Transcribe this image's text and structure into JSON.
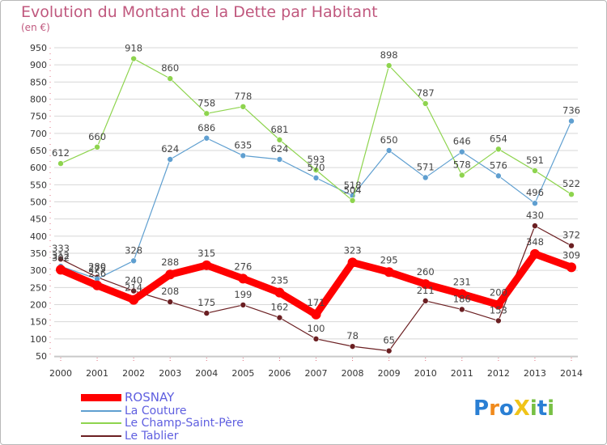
{
  "header": {
    "title": "Evolution du Montant de la Dette par Habitant",
    "unit": "(en €)"
  },
  "colors": {
    "title": "#c0587e",
    "rosnay": "#ff0000",
    "la_couture": "#5f9fd0",
    "champ": "#8ed44e",
    "tablier": "#6b1f22",
    "grid": "#d7d7d7",
    "axis_text": "#333333"
  },
  "logo": {
    "text": "ProXiti",
    "letters": [
      "P",
      "r",
      "o",
      "X",
      "i",
      "t",
      "i"
    ]
  },
  "chart_data": {
    "type": "line",
    "title": "Evolution du Montant de la Dette par Habitant",
    "ylabel": "(en €)",
    "xlabel": "",
    "x": [
      "2000",
      "2001",
      "2002",
      "2003",
      "2004",
      "2005",
      "2006",
      "2007",
      "2008",
      "2009",
      "2010",
      "2011",
      "2012",
      "2013",
      "2014"
    ],
    "ylim": [
      50,
      950
    ],
    "yticks": [
      50,
      100,
      150,
      200,
      250,
      300,
      350,
      400,
      450,
      500,
      550,
      600,
      650,
      700,
      750,
      800,
      850,
      900,
      950
    ],
    "grid": true,
    "legend_position": "bottom-left",
    "series": [
      {
        "name": "ROSNAY",
        "key": "rosnay",
        "values": [
          302,
          256,
          214,
          288,
          315,
          276,
          235,
          171,
          323,
          295,
          260,
          231,
          200,
          348,
          309
        ],
        "labels": [
          "302",
          "256",
          "214",
          "288",
          "315",
          "276",
          "235",
          "171",
          "323",
          "295",
          "260",
          "231",
          "200",
          "348",
          "309"
        ]
      },
      {
        "name": "La Couture",
        "key": "la_couture",
        "values": [
          312,
          275,
          328,
          624,
          686,
          635,
          624,
          570,
          518,
          650,
          571,
          646,
          576,
          496,
          736
        ],
        "labels": [
          "312",
          "275",
          "328",
          "624",
          "686",
          "635",
          "624",
          "570",
          "518",
          "650",
          "571",
          "646",
          "576",
          "496",
          "736"
        ]
      },
      {
        "name": "Le Champ-Saint-Père",
        "key": "champ",
        "values": [
          612,
          660,
          918,
          860,
          758,
          778,
          681,
          593,
          504,
          898,
          787,
          578,
          654,
          591,
          522
        ],
        "labels": [
          "612",
          "660",
          "918",
          "860",
          "758",
          "778",
          "681",
          "593",
          "504",
          "898",
          "787",
          "578",
          "654",
          "591",
          "522"
        ]
      },
      {
        "name": "Le Tablier",
        "key": "tablier",
        "values": [
          333,
          280,
          240,
          208,
          175,
          199,
          162,
          100,
          78,
          65,
          211,
          186,
          153,
          430,
          372
        ],
        "labels": [
          "333",
          "280",
          "240",
          "208",
          "175",
          "199",
          "162",
          "100",
          "78",
          "65",
          "211",
          "186",
          "153",
          "430",
          "372"
        ]
      }
    ]
  }
}
